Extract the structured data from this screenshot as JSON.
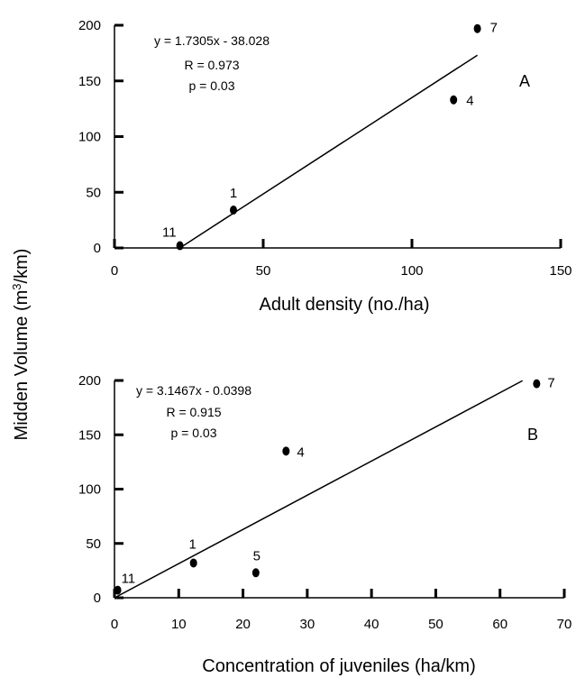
{
  "figure": {
    "shared_ylabel": "Midden Volume (m",
    "shared_ylabel_sup": "3",
    "shared_ylabel_tail": "/km)"
  },
  "chart_data": [
    {
      "type": "scatter",
      "panel": "A",
      "xlabel": "Adult density (no./ha)",
      "ylabel": "Midden Volume (m3/km)",
      "xlim": [
        0,
        150
      ],
      "ylim": [
        0,
        200
      ],
      "x_ticks": [
        "0",
        "50",
        "100",
        "150"
      ],
      "y_ticks": [
        "0",
        "50",
        "100",
        "150",
        "200"
      ],
      "points": [
        {
          "label": "11",
          "x": 22,
          "y": 2
        },
        {
          "label": "1",
          "x": 40,
          "y": 34
        },
        {
          "label": "4",
          "x": 114,
          "y": 133
        },
        {
          "label": "7",
          "x": 122,
          "y": 197
        }
      ],
      "regression": {
        "slope": 1.7305,
        "intercept": -38.028,
        "x_range": [
          22,
          122
        ]
      },
      "annotations": [
        "y = 1.7305x - 38.028",
        "R = 0.973",
        "p = 0.03"
      ],
      "grid": false
    },
    {
      "type": "scatter",
      "panel": "B",
      "xlabel": "Concentration of juveniles (ha/km)",
      "ylabel": "Midden Volume (m3/km)",
      "xlim": [
        0,
        70
      ],
      "ylim": [
        0,
        200
      ],
      "x_ticks": [
        "0",
        "10",
        "20",
        "30",
        "40",
        "50",
        "60",
        "70"
      ],
      "y_ticks": [
        "0",
        "50",
        "100",
        "150",
        "200"
      ],
      "points": [
        {
          "label": "11",
          "x": 0.5,
          "y": 7
        },
        {
          "label": "1",
          "x": 12.3,
          "y": 32
        },
        {
          "label": "5",
          "x": 22,
          "y": 23
        },
        {
          "label": "4",
          "x": 26.7,
          "y": 135
        },
        {
          "label": "7",
          "x": 65.7,
          "y": 197
        }
      ],
      "regression": {
        "slope": 3.1467,
        "intercept": -0.0398,
        "x_range": [
          0,
          63.5
        ]
      },
      "annotations": [
        "y = 3.1467x - 0.0398",
        "R = 0.915",
        "p = 0.03"
      ],
      "grid": false
    }
  ]
}
